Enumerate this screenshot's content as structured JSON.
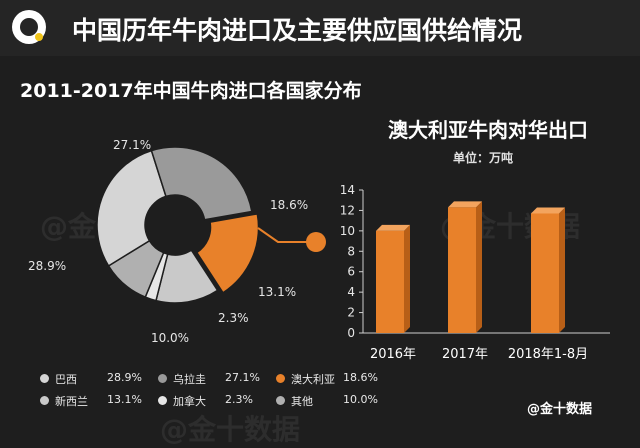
{
  "header": {
    "title": "中国历年牛肉进口及主要供应国供给情况"
  },
  "source": "@金十数据",
  "watermark": "@金十数据",
  "chart_data": [
    {
      "type": "pie",
      "title": "2011-2017年中国牛肉进口各国家分布",
      "slices": [
        {
          "name": "澳大利亚",
          "value": 18.6,
          "label": "18.6%",
          "color": "#e8812a"
        },
        {
          "name": "新西兰",
          "value": 13.1,
          "label": "13.1%",
          "color": "#c9c9c9"
        },
        {
          "name": "加拿大",
          "value": 2.3,
          "label": "2.3%",
          "color": "#e6e6e6"
        },
        {
          "name": "其他",
          "value": 10.0,
          "label": "10.0%",
          "color": "#b0b0b0"
        },
        {
          "name": "巴西",
          "value": 28.9,
          "label": "28.9%",
          "color": "#d5d5d5"
        },
        {
          "name": "乌拉圭",
          "value": 27.1,
          "label": "27.1%",
          "color": "#9a9a9a"
        }
      ]
    },
    {
      "type": "bar",
      "title": "澳大利亚牛肉对华出口",
      "unit": "单位：万吨",
      "categories": [
        "2016年",
        "2017年",
        "2018年1-8月"
      ],
      "values": [
        10.0,
        12.3,
        11.7
      ],
      "ylim": [
        0,
        14
      ],
      "yticks": [
        "0",
        "2",
        "4",
        "6",
        "8",
        "10",
        "12",
        "14"
      ],
      "bar_color": "#e8812a"
    }
  ],
  "legend": [
    {
      "name": "巴西",
      "value": "28.9%",
      "color": "#d5d5d5"
    },
    {
      "name": "乌拉圭",
      "value": "27.1%",
      "color": "#9a9a9a"
    },
    {
      "name": "澳大利亚",
      "value": "18.6%",
      "color": "#e8812a"
    },
    {
      "name": "新西兰",
      "value": "13.1%",
      "color": "#c9c9c9"
    },
    {
      "name": "加拿大",
      "value": "2.3%",
      "color": "#e6e6e6"
    },
    {
      "name": "其他",
      "value": "10.0%",
      "color": "#b0b0b0"
    }
  ]
}
